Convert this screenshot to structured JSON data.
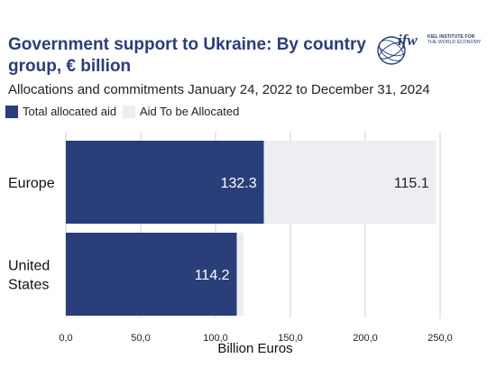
{
  "title": "Government support to Ukraine: By country group, € billion",
  "subtitle": "Allocations and commitments January 24, 2022 to December 31, 2024",
  "logo": {
    "mark": "ifw",
    "line1": "KIEL INSTITUTE FOR",
    "line2": "THE WORLD ECONOMY"
  },
  "colors": {
    "allocated": "#2a3f7a",
    "to_be_allocated": "#eceef2",
    "grid": "#cfd2d8",
    "title": "#2a3f78"
  },
  "chart_data": {
    "type": "bar",
    "orientation": "horizontal",
    "stacked": true,
    "categories": [
      "Europe",
      "United States"
    ],
    "series": [
      {
        "name": "Total allocated aid",
        "values": [
          132.3,
          114.2
        ],
        "labels": [
          "132.3",
          "114.2"
        ]
      },
      {
        "name": "Aid To be Allocated",
        "values": [
          115.1,
          4.5
        ],
        "labels": [
          "115.1",
          ""
        ]
      }
    ],
    "xlabel": "Billion Euros",
    "xlim": [
      0,
      250
    ],
    "xticks": [
      0,
      50,
      100,
      150,
      200,
      250
    ],
    "xtick_labels": [
      "0,0",
      "50,0",
      "100,0",
      "150,0",
      "200,0",
      "250,0"
    ],
    "grid": true,
    "legend_position": "top-left"
  }
}
